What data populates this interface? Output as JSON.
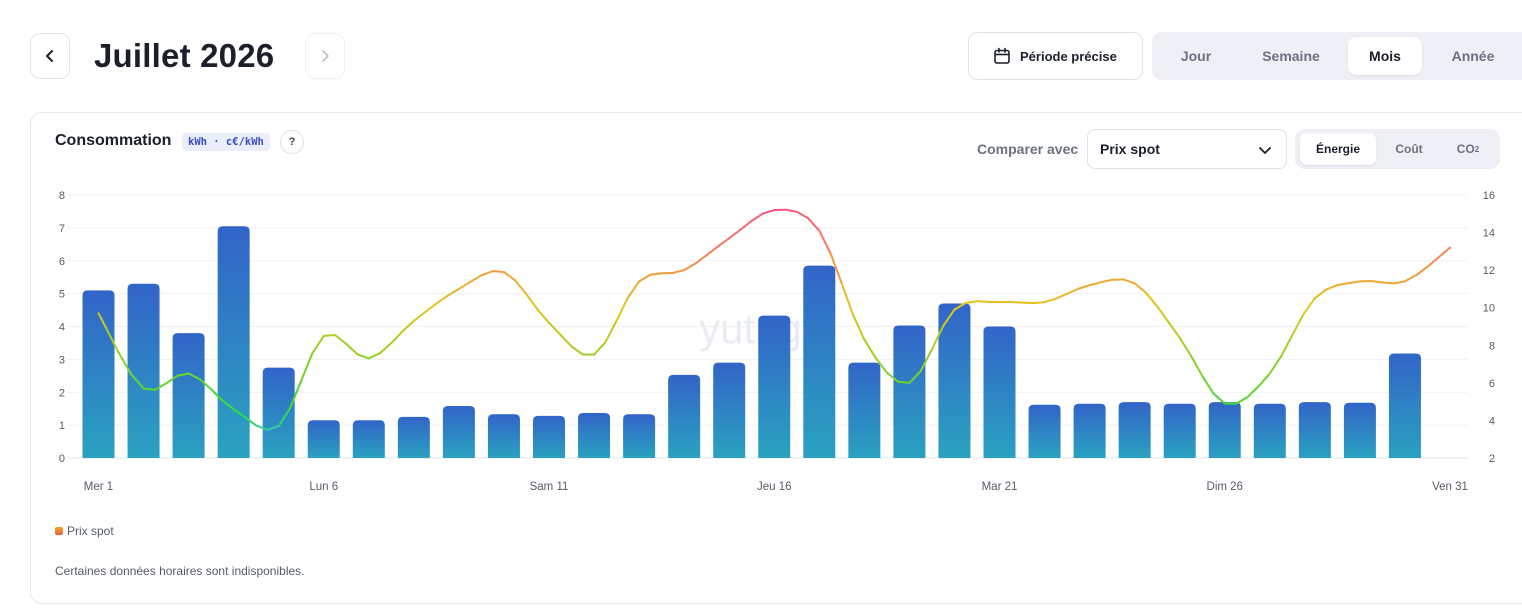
{
  "header": {
    "title": "Juillet 2026",
    "period_button_label": "Période précise",
    "range_tabs": [
      "Jour",
      "Semaine",
      "Mois",
      "Année"
    ],
    "active_range": "Mois"
  },
  "card": {
    "title": "Consommation",
    "unit_badge": "kWh · c€/kWh",
    "help_label": "?",
    "compare_label": "Comparer avec",
    "compare_value": "Prix spot",
    "metric_tabs": [
      "Énergie",
      "Coût",
      "CO"
    ],
    "metric_tab_co2_sub": "2",
    "active_metric": "Énergie",
    "watermark": "yutugy",
    "legend_label": "Prix spot",
    "note": "Certaines données horaires sont indisponibles."
  },
  "chart_data": {
    "type": "bar",
    "x": [
      1,
      2,
      3,
      4,
      5,
      6,
      7,
      8,
      9,
      10,
      11,
      12,
      13,
      14,
      15,
      16,
      17,
      18,
      19,
      20,
      21,
      22,
      23,
      24,
      25,
      26,
      27,
      28,
      29,
      30,
      31
    ],
    "x_tick_labels": [
      {
        "day": 1,
        "label": "Mer 1"
      },
      {
        "day": 6,
        "label": "Lun 6"
      },
      {
        "day": 11,
        "label": "Sam 11"
      },
      {
        "day": 16,
        "label": "Jeu 16"
      },
      {
        "day": 21,
        "label": "Mar 21"
      },
      {
        "day": 26,
        "label": "Dim 26"
      },
      {
        "day": 31,
        "label": "Ven 31"
      }
    ],
    "series": [
      {
        "axis": "left",
        "kind": "bar",
        "values": [
          5.1,
          5.3,
          3.8,
          7.05,
          2.75,
          1.15,
          1.15,
          1.25,
          1.58,
          1.33,
          1.28,
          1.37,
          1.33,
          2.53,
          2.9,
          4.33,
          5.85,
          2.9,
          4.03,
          4.7,
          4.0,
          1.62,
          1.65,
          1.7,
          1.65,
          1.7,
          1.65,
          1.7,
          1.68,
          3.18,
          null
        ]
      },
      {
        "axis": "right",
        "kind": "line",
        "name": "Prix spot",
        "values": [
          9.7,
          5.7,
          6.5,
          4.6,
          3.7,
          8.5,
          7.3,
          9.3,
          11.0,
          11.9,
          9.2,
          7.5,
          11.4,
          12.0,
          13.7,
          15.2,
          14.1,
          8.3,
          6.0,
          9.9,
          10.3,
          10.3,
          11.2,
          11.3,
          8.4,
          4.9,
          6.5,
          10.5,
          11.4,
          11.4,
          13.2
        ]
      }
    ],
    "y_left": {
      "ticks": [
        0,
        1,
        2,
        3,
        4,
        5,
        6,
        7,
        8
      ],
      "range": [
        0,
        8
      ]
    },
    "y_right": {
      "ticks": [
        2,
        4,
        6,
        8,
        10,
        12,
        14,
        16
      ],
      "range": [
        2,
        16
      ]
    },
    "grid": true,
    "legend_position": "bottom-left",
    "colors": {
      "bar_top": "#3264c8",
      "bar_bottom": "#2aa2c0",
      "line_low": "#2edc3a",
      "line_mid": "#e6c619",
      "line_high": "#ff4f86"
    }
  }
}
